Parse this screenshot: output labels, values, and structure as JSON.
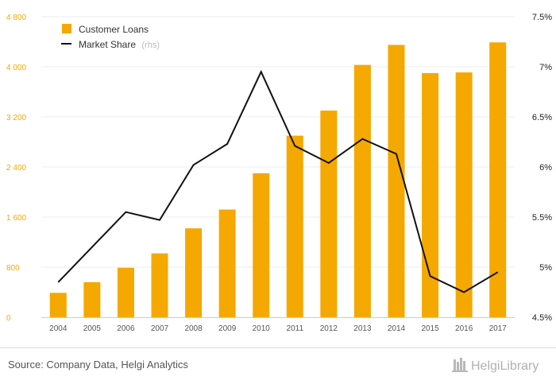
{
  "chart_data": {
    "type": "bar",
    "categories": [
      "2004",
      "2005",
      "2006",
      "2007",
      "2008",
      "2009",
      "2010",
      "2011",
      "2012",
      "2013",
      "2014",
      "2015",
      "2016",
      "2017"
    ],
    "series": [
      {
        "name": "Customer Loans",
        "type": "bar",
        "axis": "left",
        "color": "#f5a800",
        "values": [
          390,
          560,
          790,
          1020,
          1420,
          1720,
          2300,
          2900,
          3300,
          4030,
          4350,
          3900,
          3910,
          4390
        ]
      },
      {
        "name": "Market Share",
        "type": "line",
        "axis": "right",
        "color": "#111111",
        "values": [
          4.85,
          5.2,
          5.55,
          5.47,
          6.02,
          6.23,
          6.95,
          6.21,
          6.04,
          6.28,
          6.13,
          4.91,
          4.75,
          4.95
        ]
      }
    ],
    "y_left": {
      "ylim": [
        0,
        4800
      ],
      "ticks": [
        "0",
        "800",
        "1 600",
        "2 400",
        "3 200",
        "4 000",
        "4 800"
      ]
    },
    "y_right": {
      "ylim": [
        4.5,
        7.5
      ],
      "ticks": [
        "4.5%",
        "5%",
        "5.5%",
        "6%",
        "6.5%",
        "7%",
        "7.5%"
      ]
    },
    "grid": true,
    "legend": {
      "position": "top-left",
      "items": [
        "Customer Loans",
        "Market Share"
      ],
      "suffix": "(rhs)"
    }
  },
  "footer": {
    "source": "Source: Company Data, Helgi Analytics",
    "brand": "HelgiLibrary"
  }
}
